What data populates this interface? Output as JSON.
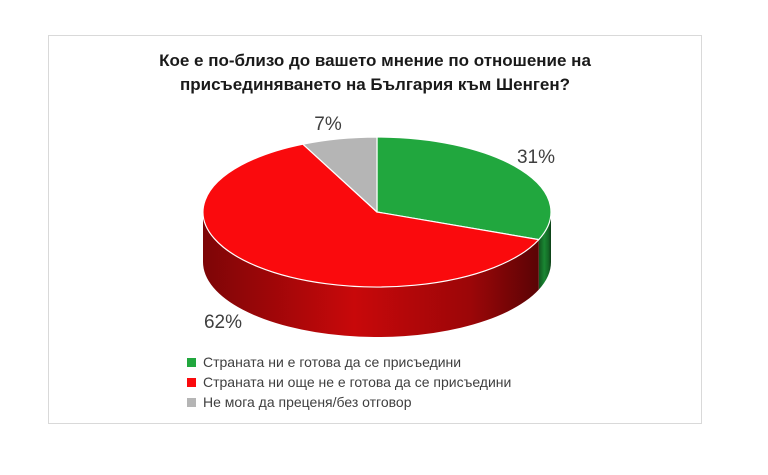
{
  "chart_data": {
    "type": "pie",
    "effect": "3d",
    "title": "Кое е по-близо до вашето мнение по отношение на\nприсъединяването на България към Шенген?",
    "start_angle_deg": 0,
    "direction": "clockwise",
    "legend_position": "bottom-left",
    "slices": [
      {
        "name": "Страната ни е готова да се присъедини",
        "value": 31,
        "label": "31%",
        "color": "#21a73e"
      },
      {
        "name": "Страната ни още не е готова да се присъедини",
        "value": 62,
        "label": "62%",
        "color": "#fa0a0d"
      },
      {
        "name": "Не мога да преценя/без отговор",
        "value": 7,
        "label": "7%",
        "color": "#b5b5b5"
      }
    ],
    "label_color": "#3f3f3f",
    "border_color": "#d9d9d9"
  }
}
